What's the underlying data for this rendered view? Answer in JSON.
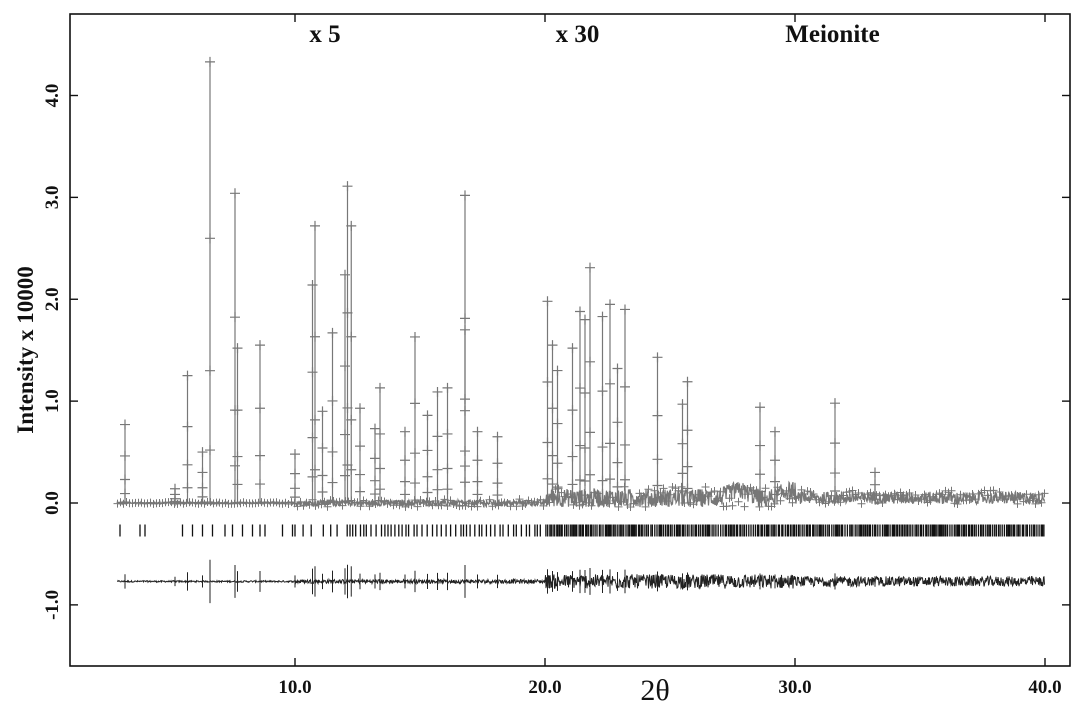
{
  "chart_data": {
    "type": "line",
    "title": "",
    "xlabel": "2θ",
    "ylabel": "Intensity x 10000",
    "xlim": [
      1.0,
      41.0
    ],
    "ylim": [
      -1.6,
      4.8
    ],
    "x_ticks": [
      10.0,
      20.0,
      30.0,
      40.0
    ],
    "x_tick_labels": [
      "10.0",
      "20.0",
      "30.0",
      "40.0"
    ],
    "y_ticks": [
      -1.0,
      0.0,
      1.0,
      2.0,
      3.0,
      4.0
    ],
    "y_tick_labels": [
      "-1.0",
      "0.0",
      "1.0",
      "2.0",
      "3.0",
      "4.0"
    ],
    "annotations": [
      {
        "text": "x 5",
        "x": 11.2
      },
      {
        "text": "x 30",
        "x": 21.3
      },
      {
        "text": "Meionite",
        "x": 31.5
      }
    ],
    "scale_changes_at": [
      10.0,
      20.0
    ],
    "series": [
      {
        "role": "observed",
        "marker": "+",
        "color": "#777777",
        "peaks": [
          {
            "x": 3.2,
            "y": 0.77
          },
          {
            "x": 5.2,
            "y": 0.14
          },
          {
            "x": 5.7,
            "y": 1.25
          },
          {
            "x": 6.3,
            "y": 0.5
          },
          {
            "x": 6.6,
            "y": 4.33
          },
          {
            "x": 7.6,
            "y": 3.04
          },
          {
            "x": 7.7,
            "y": 1.52
          },
          {
            "x": 8.6,
            "y": 1.55
          },
          {
            "x": 10.0,
            "y": 0.48
          },
          {
            "x": 10.7,
            "y": 2.14
          },
          {
            "x": 10.8,
            "y": 2.72
          },
          {
            "x": 11.1,
            "y": 0.9
          },
          {
            "x": 11.5,
            "y": 1.67
          },
          {
            "x": 12.0,
            "y": 2.24
          },
          {
            "x": 12.1,
            "y": 3.11
          },
          {
            "x": 12.25,
            "y": 2.72
          },
          {
            "x": 12.6,
            "y": 0.93
          },
          {
            "x": 13.2,
            "y": 0.73
          },
          {
            "x": 13.4,
            "y": 1.13
          },
          {
            "x": 14.4,
            "y": 0.7
          },
          {
            "x": 14.8,
            "y": 1.63
          },
          {
            "x": 15.3,
            "y": 0.86
          },
          {
            "x": 15.7,
            "y": 1.09
          },
          {
            "x": 16.1,
            "y": 1.13
          },
          {
            "x": 16.8,
            "y": 3.02
          },
          {
            "x": 16.8,
            "y": 1.7
          },
          {
            "x": 17.3,
            "y": 0.7
          },
          {
            "x": 18.1,
            "y": 0.65
          },
          {
            "x": 20.1,
            "y": 1.98
          },
          {
            "x": 20.3,
            "y": 1.55
          },
          {
            "x": 20.5,
            "y": 1.3
          },
          {
            "x": 21.1,
            "y": 1.52
          },
          {
            "x": 21.4,
            "y": 1.88
          },
          {
            "x": 21.6,
            "y": 1.8
          },
          {
            "x": 21.8,
            "y": 2.31
          },
          {
            "x": 22.3,
            "y": 1.83
          },
          {
            "x": 22.6,
            "y": 1.95
          },
          {
            "x": 22.9,
            "y": 1.32
          },
          {
            "x": 23.2,
            "y": 1.9
          },
          {
            "x": 24.5,
            "y": 1.43
          },
          {
            "x": 25.5,
            "y": 0.97
          },
          {
            "x": 25.7,
            "y": 1.19
          },
          {
            "x": 28.6,
            "y": 0.94
          },
          {
            "x": 29.2,
            "y": 0.7
          },
          {
            "x": 31.6,
            "y": 0.98
          },
          {
            "x": 33.2,
            "y": 0.3
          }
        ],
        "background": 0.0
      },
      {
        "role": "difference",
        "color": "#222222",
        "baseline": -0.77
      },
      {
        "role": "reflection markers",
        "color": "#111111",
        "y": -0.27,
        "x_range": [
          3.0,
          40.0
        ]
      }
    ],
    "grid": false,
    "legend": "none"
  }
}
